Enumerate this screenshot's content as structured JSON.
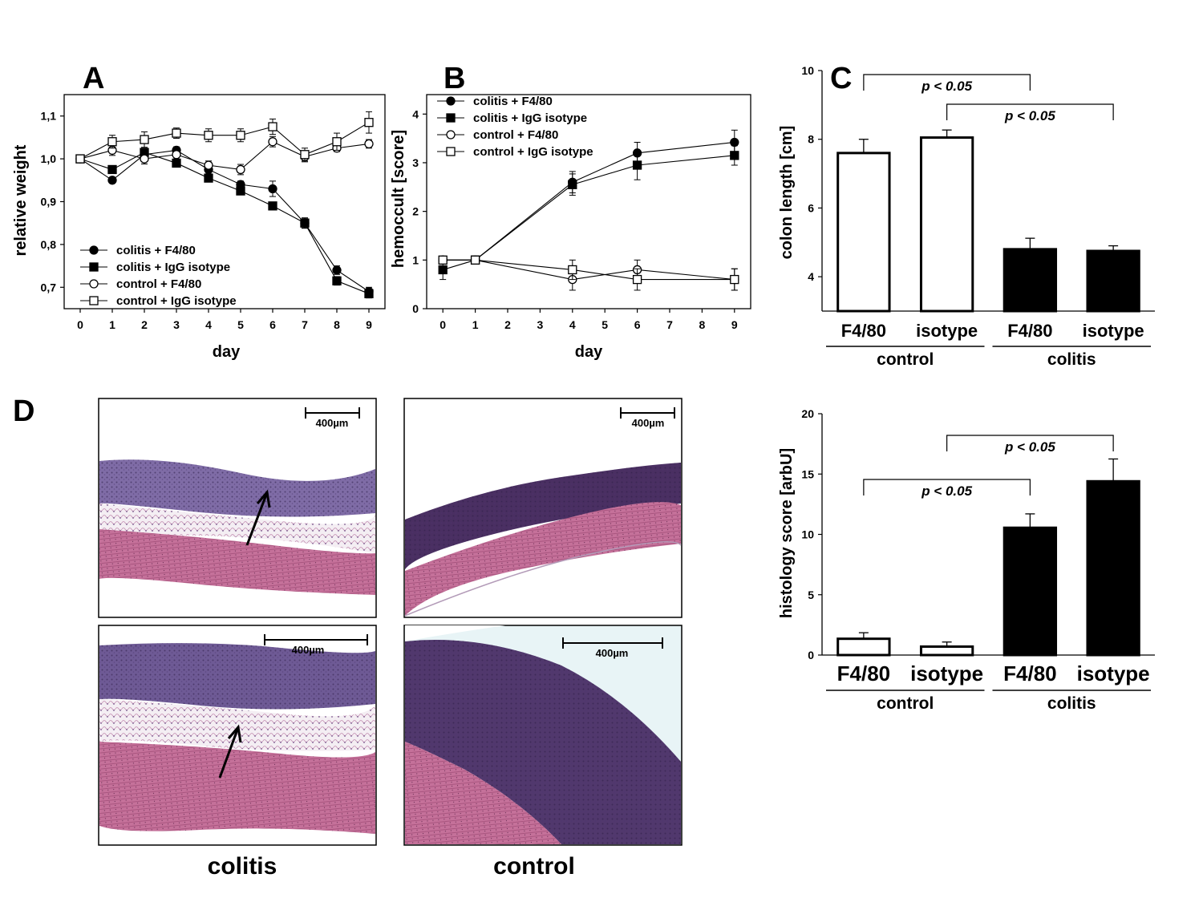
{
  "panels": {
    "A": {
      "letter": "A",
      "chart_data": {
        "type": "line",
        "xlabel": "day",
        "ylabel": "relative weight",
        "ylim": [
          0.65,
          1.15
        ],
        "xlim": [
          -0.5,
          9.5
        ],
        "xticks": [
          "0",
          "1",
          "2",
          "3",
          "4",
          "5",
          "6",
          "7",
          "8",
          "9"
        ],
        "yticks": [
          "0,7",
          "0,8",
          "0,9",
          "1,0",
          "1,1"
        ],
        "ytick_values": [
          0.7,
          0.8,
          0.9,
          1.0,
          1.1
        ],
        "legend_position": "bottom-left",
        "grid": false,
        "series": [
          {
            "name": "colitis + F4/80",
            "marker": "filled-circle",
            "x": [
              0,
              1,
              2,
              3,
              4,
              5,
              6,
              7,
              8,
              9
            ],
            "y": [
              1.0,
              0.95,
              1.01,
              1.02,
              0.975,
              0.94,
              0.93,
              0.85,
              0.74,
              0.69
            ],
            "err": [
              0,
              0.006,
              0.01,
              0.008,
              0.01,
              0.008,
              0.018,
              0.012,
              0.01,
              0.01
            ]
          },
          {
            "name": "colitis + IgG isotype",
            "marker": "filled-square",
            "x": [
              0,
              1,
              2,
              3,
              4,
              5,
              6,
              7,
              8,
              9
            ],
            "y": [
              1.0,
              0.975,
              1.015,
              0.99,
              0.955,
              0.925,
              0.89,
              0.85,
              0.715,
              0.685
            ],
            "err": [
              0,
              0.006,
              0.01,
              0.008,
              0.006,
              0.008,
              0.006,
              0.012,
              0.01,
              0.01
            ]
          },
          {
            "name": "control + F4/80",
            "marker": "open-circle",
            "x": [
              0,
              1,
              2,
              3,
              4,
              5,
              6,
              7,
              8,
              9
            ],
            "y": [
              1.0,
              1.02,
              1.0,
              1.01,
              0.985,
              0.975,
              1.04,
              1.005,
              1.025,
              1.035
            ],
            "err": [
              0,
              0.012,
              0.012,
              0.01,
              0.01,
              0.012,
              0.012,
              0.012,
              0.008,
              0.01
            ]
          },
          {
            "name": "control + IgG isotype",
            "marker": "open-square",
            "x": [
              0,
              1,
              2,
              3,
              4,
              5,
              6,
              7,
              8,
              9
            ],
            "y": [
              1.0,
              1.04,
              1.045,
              1.06,
              1.055,
              1.055,
              1.075,
              1.01,
              1.04,
              1.085
            ],
            "err": [
              0,
              0.015,
              0.018,
              0.012,
              0.015,
              0.015,
              0.018,
              0.015,
              0.02,
              0.025
            ]
          }
        ]
      }
    },
    "B": {
      "letter": "B",
      "chart_data": {
        "type": "line",
        "xlabel": "day",
        "ylabel": "hemoccult [score]",
        "ylim": [
          0,
          4.4
        ],
        "xlim": [
          -0.5,
          9.5
        ],
        "xticks": [
          "0",
          "1",
          "2",
          "3",
          "4",
          "5",
          "6",
          "7",
          "8",
          "9"
        ],
        "yticks": [
          "0",
          "1",
          "2",
          "3",
          "4"
        ],
        "ytick_values": [
          0,
          1,
          2,
          3,
          4
        ],
        "legend_position": "top-left",
        "grid": false,
        "series": [
          {
            "name": "colitis + F4/80",
            "marker": "filled-circle",
            "x": [
              0,
              1,
              4,
              6,
              9
            ],
            "y": [
              1.0,
              1.0,
              2.6,
              3.2,
              3.42
            ],
            "err": [
              0,
              0,
              0.22,
              0.22,
              0.25
            ]
          },
          {
            "name": "colitis + IgG isotype",
            "marker": "filled-square",
            "x": [
              0,
              1,
              4,
              6,
              9
            ],
            "y": [
              0.8,
              1.0,
              2.55,
              2.95,
              3.15
            ],
            "err": [
              0.2,
              0,
              0.22,
              0.3,
              0.2
            ]
          },
          {
            "name": "control + F4/80",
            "marker": "open-circle",
            "x": [
              0,
              1,
              4,
              6,
              9
            ],
            "y": [
              1.0,
              1.0,
              0.6,
              0.8,
              0.6
            ],
            "err": [
              0,
              0,
              0.22,
              0.2,
              0.22
            ]
          },
          {
            "name": "control + IgG isotype",
            "marker": "open-square",
            "x": [
              0,
              1,
              4,
              6,
              9
            ],
            "y": [
              1.0,
              1.0,
              0.8,
              0.6,
              0.6
            ],
            "err": [
              0,
              0,
              0.2,
              0.22,
              0.22
            ]
          }
        ]
      }
    },
    "C": {
      "letter": "C",
      "charts": [
        {
          "type": "bar",
          "ylabel": "colon length [cm]",
          "ylim": [
            3,
            10
          ],
          "yticks": [
            "4",
            "6",
            "8",
            "10"
          ],
          "ytick_values": [
            4,
            6,
            8,
            10
          ],
          "categories": [
            "F4/80",
            "isotype",
            "F4/80",
            "isotype"
          ],
          "values": [
            7.6,
            8.05,
            4.8,
            4.75
          ],
          "errors": [
            0.4,
            0.22,
            0.32,
            0.15
          ],
          "fill": [
            "white",
            "white",
            "black",
            "black"
          ],
          "groups": [
            {
              "label": "control",
              "members": [
                0,
                1
              ]
            },
            {
              "label": "colitis",
              "members": [
                2,
                3
              ]
            }
          ],
          "significance": [
            {
              "from": 0,
              "to": 2,
              "label": "p < 0.05"
            },
            {
              "from": 1,
              "to": 3,
              "label": "p < 0.05"
            }
          ]
        },
        {
          "type": "bar",
          "ylabel": "histology score [arbU]",
          "ylim": [
            0,
            20
          ],
          "yticks": [
            "0",
            "5",
            "10",
            "15",
            "20"
          ],
          "ytick_values": [
            0,
            5,
            10,
            15,
            20
          ],
          "categories": [
            "F4/80",
            "isotype",
            "F4/80",
            "isotype"
          ],
          "values": [
            1.35,
            0.7,
            10.55,
            14.4
          ],
          "errors": [
            0.5,
            0.38,
            1.15,
            1.85
          ],
          "fill": [
            "white",
            "white",
            "black",
            "black"
          ],
          "groups": [
            {
              "label": "control",
              "members": [
                0,
                1
              ]
            },
            {
              "label": "colitis",
              "members": [
                2,
                3
              ]
            }
          ],
          "significance": [
            {
              "from": 0,
              "to": 2,
              "label": "p < 0.05"
            },
            {
              "from": 1,
              "to": 3,
              "label": "p < 0.05"
            }
          ]
        }
      ]
    },
    "D": {
      "letter": "D",
      "scale_bar_label": "400µm",
      "columns": [
        "colitis",
        "control"
      ],
      "images": [
        {
          "group": "colitis",
          "row": 1,
          "arrow": true
        },
        {
          "group": "control",
          "row": 1,
          "arrow": false
        },
        {
          "group": "colitis",
          "row": 2,
          "arrow": true
        },
        {
          "group": "control",
          "row": 2,
          "arrow": false
        }
      ],
      "colors": {
        "muscle": "#c86f98",
        "mucosa": "#6e4f8e",
        "stain_dark": "#3d2a5a",
        "background": "#ffffff"
      }
    }
  }
}
